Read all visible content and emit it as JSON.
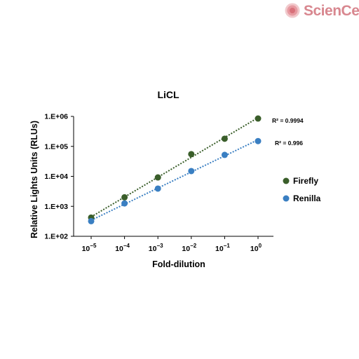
{
  "brand": {
    "logo_text": "ScienCell"
  },
  "chart_data": {
    "type": "scatter",
    "title": "LiCL",
    "xlabel": "Fold-dilution",
    "ylabel": "Relative Lights Units (RLUs)",
    "x_scale": "log",
    "y_scale": "log",
    "x": [
      1e-05,
      0.0001,
      0.001,
      0.01,
      0.1,
      1
    ],
    "x_tick_base": "10",
    "x_tick_exponents": [
      "−5",
      "−4",
      "−3",
      "−2",
      "−1",
      "0"
    ],
    "y_tick_labels": [
      "1.E+02",
      "1.E+03",
      "1.E+04",
      "1.E+05",
      "1.E+06"
    ],
    "y_ticks": [
      100,
      1000,
      10000,
      100000,
      1000000
    ],
    "ylim": [
      100,
      1000000
    ],
    "series": [
      {
        "name": "Firefly",
        "color": "#3a5e2a",
        "values": [
          420,
          2000,
          9200,
          55000,
          180000,
          850000
        ],
        "trendline": "power",
        "r2_label": "R² = 0.9994"
      },
      {
        "name": "Renilla",
        "color": "#3a7fc2",
        "values": [
          320,
          1250,
          3900,
          15000,
          52000,
          150000
        ],
        "trendline": "power",
        "r2_label": "R² = 0.996"
      }
    ],
    "legend_position": "right",
    "grid": false
  }
}
